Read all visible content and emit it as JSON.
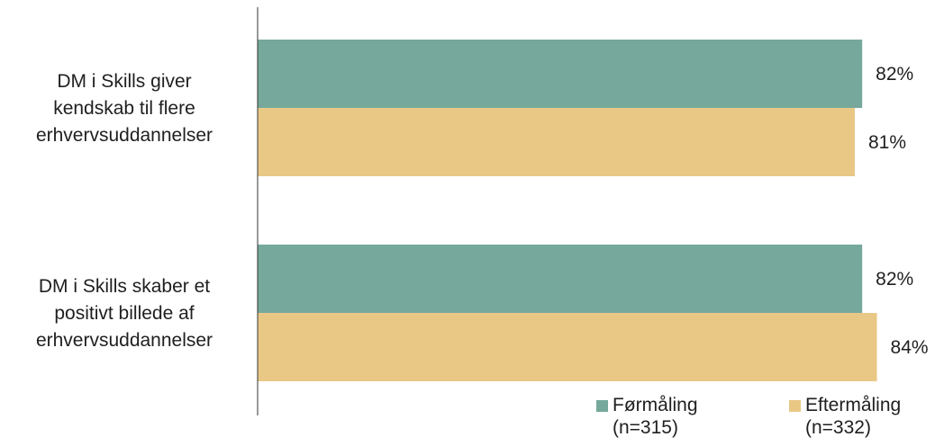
{
  "chart_data": {
    "type": "bar",
    "orientation": "horizontal",
    "categories": [
      "DM i Skills giver kendskab til flere erhvervsuddannelser",
      "DM i Skills skaber et positivt billede af erhvervsuddannelser"
    ],
    "category_lines": [
      [
        "DM i Skills giver",
        "kendskab til flere",
        "erhvervsuddannelser"
      ],
      [
        "DM i Skills skaber et",
        "positivt billede af",
        "erhvervsuddannelser"
      ]
    ],
    "series": [
      {
        "name": "Førmåling (n=315)",
        "values": [
          82,
          82
        ],
        "labels": [
          "82%",
          "82%"
        ],
        "color": "#76A99B"
      },
      {
        "name": "Eftermåling (n=332)",
        "values": [
          81,
          84
        ],
        "labels": [
          "81%",
          "84%"
        ],
        "color": "#E9C886"
      }
    ],
    "value_unit": "%",
    "xlim": [
      0,
      100
    ],
    "grid": false,
    "legend_position": "bottom-right"
  },
  "legend": {
    "items": [
      {
        "line1": "Førmåling",
        "line2": "(n=315)",
        "color": "#76A99B"
      },
      {
        "line1": "Eftermåling",
        "line2": "(n=332)",
        "color": "#E9C886"
      }
    ]
  }
}
